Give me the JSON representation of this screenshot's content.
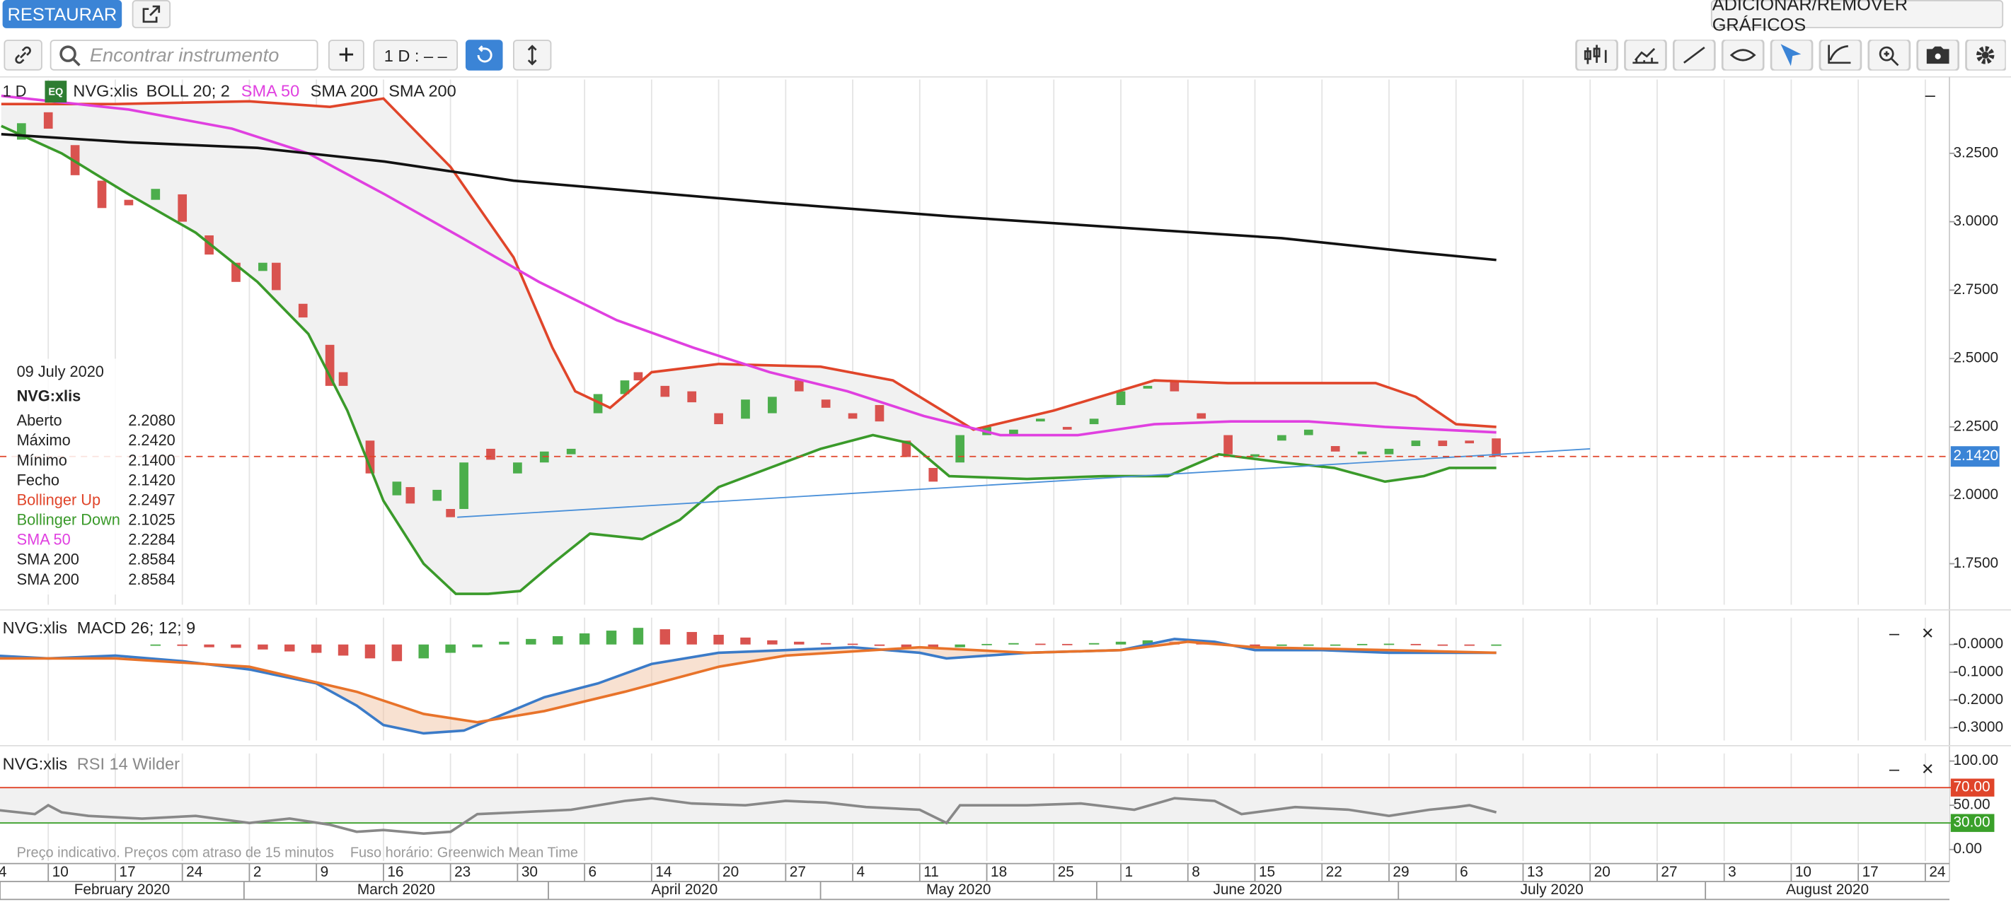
{
  "toolbar": {
    "restore": "RESTAURAR",
    "add_remove": "ADICIONAR/REMOVER GRÁFICOS",
    "search_placeholder": "Encontrar instrumento",
    "interval": "1 D : – –"
  },
  "legend": {
    "interval": "1 D",
    "badge": "EQ",
    "instrument": "NVG:xlis",
    "indicators": [
      "BOLL 20; 2",
      "SMA 50",
      "SMA 200",
      "SMA 200"
    ]
  },
  "info": {
    "date": "09 July 2020",
    "instrument": "NVG:xlis",
    "rows": [
      {
        "label": "Aberto",
        "value": "2.2080",
        "color": "#222222"
      },
      {
        "label": "Máximo",
        "value": "2.2420",
        "color": "#222222"
      },
      {
        "label": "Mínimo",
        "value": "2.1400",
        "color": "#222222"
      },
      {
        "label": "Fecho",
        "value": "2.1420",
        "color": "#222222"
      },
      {
        "label": "Bollinger Up",
        "value": "2.2497",
        "color": "#e0452a"
      },
      {
        "label": "Bollinger Down",
        "value": "2.1025",
        "color": "#3a9a2a"
      },
      {
        "label": "SMA 50",
        "value": "2.2284",
        "color": "#e040e0"
      },
      {
        "label": "SMA 200",
        "value": "2.8584",
        "color": "#222222"
      },
      {
        "label": "SMA 200",
        "value": "2.8584",
        "color": "#222222"
      }
    ]
  },
  "footer": {
    "note": "Preço indicativo. Preços com atraso de 15 minutos",
    "timezone": "Fuso horário: Greenwich Mean Time"
  },
  "chart_data": [
    {
      "type": "candlestick",
      "xlim": [
        1.4,
        146.8
      ],
      "ylim": [
        1.6,
        3.52
      ],
      "yticks": [
        {
          "value": 3.25,
          "label": "3.2500"
        },
        {
          "value": 3.0,
          "label": "3.0000"
        },
        {
          "value": 2.75,
          "label": "2.7500"
        },
        {
          "value": 2.5,
          "label": "2.5000"
        },
        {
          "value": 2.25,
          "label": "2.2500"
        },
        {
          "value": 2.0,
          "label": "2.0000"
        },
        {
          "value": 1.75,
          "label": "1.7500"
        }
      ],
      "up_color": "#4cae4c",
      "down_color": "#d9534f",
      "candles": {
        "x": [
          1,
          3,
          5,
          7,
          9,
          11,
          13,
          15,
          17,
          19,
          21,
          22,
          24,
          26,
          27,
          29,
          31,
          32,
          34,
          35,
          36,
          38,
          40,
          42,
          44,
          46,
          48,
          49,
          51,
          53,
          55,
          57,
          59,
          61,
          63,
          65,
          67,
          69,
          71,
          73,
          75,
          77,
          79,
          81,
          83,
          85,
          87,
          89,
          91,
          93,
          95,
          97,
          99,
          101,
          103,
          105,
          107,
          109,
          111,
          113
        ],
        "open": [
          3.32,
          3.3,
          3.4,
          3.28,
          3.15,
          3.08,
          3.08,
          3.1,
          2.95,
          2.85,
          2.82,
          2.85,
          2.7,
          2.55,
          2.45,
          2.2,
          2.0,
          2.03,
          1.98,
          1.95,
          1.95,
          2.17,
          2.08,
          2.12,
          2.15,
          2.3,
          2.37,
          2.45,
          2.4,
          2.38,
          2.3,
          2.28,
          2.3,
          2.42,
          2.35,
          2.3,
          2.33,
          2.2,
          2.1,
          2.12,
          2.22,
          2.22,
          2.27,
          2.25,
          2.26,
          2.33,
          2.39,
          2.42,
          2.3,
          2.22,
          2.14,
          2.2,
          2.22,
          2.18,
          2.15,
          2.15,
          2.18,
          2.2,
          2.2,
          2.208
        ],
        "close": [
          3.3,
          3.36,
          3.34,
          3.17,
          3.05,
          3.06,
          3.12,
          3.0,
          2.88,
          2.78,
          2.85,
          2.75,
          2.65,
          2.4,
          2.4,
          2.08,
          2.05,
          1.97,
          2.02,
          1.92,
          2.12,
          2.13,
          2.12,
          2.16,
          2.17,
          2.37,
          2.42,
          2.42,
          2.36,
          2.34,
          2.26,
          2.35,
          2.36,
          2.38,
          2.32,
          2.28,
          2.27,
          2.14,
          2.05,
          2.22,
          2.25,
          2.24,
          2.28,
          2.24,
          2.28,
          2.38,
          2.4,
          2.38,
          2.28,
          2.15,
          2.15,
          2.22,
          2.24,
          2.16,
          2.16,
          2.17,
          2.2,
          2.18,
          2.19,
          2.142
        ]
      },
      "series": [
        {
          "color": "#e0452a",
          "fill": "#f1f1f1",
          "x": [
            1.5,
            10,
            20,
            26,
            30,
            35,
            39.7,
            42.6,
            44.3,
            46.9,
            50,
            55,
            62.6,
            68,
            74,
            80,
            87.5,
            93,
            104,
            107,
            110,
            113
          ],
          "values": [
            3.43,
            3.43,
            3.44,
            3.42,
            3.45,
            3.2,
            2.87,
            2.54,
            2.38,
            2.32,
            2.45,
            2.48,
            2.47,
            2.42,
            2.24,
            2.31,
            2.42,
            2.41,
            2.41,
            2.36,
            2.26,
            2.25
          ]
        },
        {
          "color": "#3a9a2a",
          "fill": "#f1f1f1",
          "x": [
            1.5,
            6,
            11,
            16,
            20.6,
            24.4,
            27.3,
            30,
            33,
            35.4,
            37.8,
            40.2,
            42.6,
            45.4,
            49.3,
            52.1,
            55,
            58.8,
            62.6,
            66.5,
            69.3,
            72.2,
            78,
            83.7,
            88.5,
            92.3,
            97.1,
            100.9,
            104.7,
            107.6,
            109.5,
            113
          ],
          "values": [
            3.35,
            3.25,
            3.1,
            2.96,
            2.78,
            2.59,
            2.31,
            1.98,
            1.75,
            1.64,
            1.64,
            1.65,
            1.75,
            1.86,
            1.84,
            1.91,
            2.03,
            2.1,
            2.17,
            2.22,
            2.19,
            2.07,
            2.06,
            2.07,
            2.07,
            2.15,
            2.12,
            2.1,
            2.05,
            2.07,
            2.1,
            2.1
          ]
        },
        {
          "color": "#e040e0",
          "x": [
            1.5,
            11,
            18.7,
            24.4,
            30.1,
            35.9,
            41.6,
            47.4,
            53.1,
            58.8,
            64.6,
            70.3,
            76,
            81.8,
            87.5,
            93.2,
            99,
            104.7,
            113
          ],
          "values": [
            3.46,
            3.41,
            3.34,
            3.25,
            3.1,
            2.94,
            2.78,
            2.64,
            2.54,
            2.45,
            2.38,
            2.29,
            2.22,
            2.22,
            2.26,
            2.27,
            2.27,
            2.25,
            2.23
          ]
        },
        {
          "color": "#111111",
          "x": [
            1.5,
            11,
            20.6,
            30.1,
            39.7,
            49.3,
            58.8,
            72.2,
            87.5,
            97,
            106.6,
            113
          ],
          "values": [
            3.32,
            3.29,
            3.27,
            3.22,
            3.15,
            3.11,
            3.07,
            3.02,
            2.97,
            2.94,
            2.89,
            2.86
          ]
        },
        {
          "color": "#4a90d9",
          "x": [
            35.5,
            120
          ],
          "values": [
            1.92,
            2.17
          ]
        }
      ],
      "price_line": {
        "value": 2.142,
        "label": "2.1420",
        "color": "#e0452a",
        "box_color": "#3b84d6"
      }
    },
    {
      "type": "macd",
      "legend": [
        "NVG:xlis",
        "MACD 26; 12; 9"
      ],
      "xlim": [
        1.4,
        146.8
      ],
      "ylim": [
        -0.346,
        0.097
      ],
      "yticks": [
        {
          "value": 0,
          "label": "-0.0000"
        },
        {
          "value": -0.1,
          "label": "-0.1000"
        },
        {
          "value": -0.2,
          "label": "-0.2000"
        },
        {
          "value": -0.3,
          "label": "-0.3000"
        }
      ],
      "up_color": "#4cae4c",
      "down_color": "#d9534f",
      "histogram": {
        "x": [
          13,
          15,
          17,
          19,
          21,
          23,
          25,
          27,
          29,
          31,
          33,
          35,
          37,
          39,
          41,
          43,
          45,
          47,
          49,
          51,
          53,
          55,
          57,
          59,
          61,
          63,
          65,
          67,
          69,
          71,
          73,
          75,
          77,
          79,
          81,
          83,
          85,
          87,
          89,
          91,
          93,
          95,
          97,
          99,
          101,
          103,
          105,
          107,
          109,
          111,
          113
        ],
        "values": [
          -0.002,
          -0.005,
          -0.01,
          -0.012,
          -0.018,
          -0.025,
          -0.03,
          -0.04,
          -0.05,
          -0.06,
          -0.05,
          -0.03,
          -0.01,
          0.01,
          0.02,
          0.03,
          0.04,
          0.05,
          0.06,
          0.055,
          0.045,
          0.035,
          0.025,
          0.015,
          0.01,
          0.005,
          0.003,
          -0.005,
          -0.01,
          -0.015,
          -0.01,
          0.002,
          0.005,
          0.003,
          0.002,
          0.005,
          0.01,
          0.015,
          0.01,
          0.005,
          -0.005,
          -0.008,
          -0.005,
          -0.003,
          -0.002,
          0.002,
          0.003,
          0.002,
          -0.001,
          -0.002,
          -0.002
        ]
      },
      "series": [
        {
          "color": "#3b7bc8",
          "x": [
            1,
            5,
            10,
            15,
            20,
            25,
            28,
            30,
            33,
            36,
            39,
            42,
            46,
            50,
            55,
            60,
            65,
            70,
            72,
            78,
            85,
            89,
            92,
            95,
            100,
            105,
            110,
            113
          ],
          "values": [
            -0.04,
            -0.05,
            -0.04,
            -0.06,
            -0.09,
            -0.14,
            -0.22,
            -0.29,
            -0.32,
            -0.31,
            -0.25,
            -0.19,
            -0.14,
            -0.07,
            -0.03,
            -0.02,
            -0.01,
            -0.03,
            -0.05,
            -0.03,
            -0.02,
            0.02,
            0.01,
            -0.02,
            -0.02,
            -0.03,
            -0.03,
            -0.03
          ]
        },
        {
          "color": "#e8732a",
          "x": [
            1,
            10,
            20,
            28,
            33,
            37,
            42,
            48,
            55,
            60,
            70,
            78,
            85,
            90,
            95,
            105,
            113
          ],
          "values": [
            -0.05,
            -0.05,
            -0.08,
            -0.17,
            -0.25,
            -0.28,
            -0.24,
            -0.17,
            -0.08,
            -0.04,
            -0.01,
            -0.03,
            -0.02,
            0.01,
            -0.01,
            -0.02,
            -0.03
          ]
        }
      ]
    },
    {
      "type": "line",
      "legend": [
        "NVG:xlis",
        "RSI 14 Wilder"
      ],
      "xlim": [
        1.4,
        146.8
      ],
      "ylim": [
        -13,
        108.7
      ],
      "yticks": [
        {
          "value": 100,
          "label": "100.00"
        },
        {
          "value": 50,
          "label": "50.00"
        },
        {
          "value": 0,
          "label": "0.00"
        }
      ],
      "levels": [
        {
          "value": 70,
          "label": "70.00",
          "color": "#e0452a"
        },
        {
          "value": 30,
          "label": "30.00",
          "color": "#3aa02a"
        }
      ],
      "band_fill": "#f1f1f1",
      "series": [
        {
          "color": "#888888",
          "x": [
            1,
            4,
            5,
            6,
            8,
            12,
            16,
            20,
            23,
            26,
            28,
            30,
            33,
            35,
            37,
            40,
            44,
            48,
            50,
            53,
            57,
            60,
            63,
            66,
            70,
            72,
            73,
            78,
            82,
            86,
            89,
            92,
            94,
            98,
            102,
            105,
            108,
            110,
            111,
            113
          ],
          "values": [
            45,
            40,
            50,
            42,
            38,
            35,
            38,
            30,
            35,
            28,
            20,
            22,
            18,
            20,
            40,
            42,
            45,
            55,
            58,
            52,
            50,
            55,
            53,
            48,
            45,
            30,
            50,
            50,
            52,
            45,
            58,
            55,
            40,
            48,
            45,
            38,
            45,
            48,
            50,
            42
          ]
        }
      ],
      "xticks": [
        {
          "value": 1,
          "label": "4"
        },
        {
          "value": 5,
          "label": "10"
        },
        {
          "value": 10,
          "label": "17"
        },
        {
          "value": 15,
          "label": "24"
        },
        {
          "value": 20,
          "label": "2"
        },
        {
          "value": 25,
          "label": "9"
        },
        {
          "value": 30,
          "label": "16"
        },
        {
          "value": 35,
          "label": "23"
        },
        {
          "value": 40,
          "label": "30"
        },
        {
          "value": 45,
          "label": "6"
        },
        {
          "value": 50,
          "label": "14"
        },
        {
          "value": 55,
          "label": "20"
        },
        {
          "value": 60,
          "label": "27"
        },
        {
          "value": 65,
          "label": "4"
        },
        {
          "value": 70,
          "label": "11"
        },
        {
          "value": 75,
          "label": "18"
        },
        {
          "value": 80,
          "label": "25"
        },
        {
          "value": 85,
          "label": "1"
        },
        {
          "value": 90,
          "label": "8"
        },
        {
          "value": 95,
          "label": "15"
        },
        {
          "value": 100,
          "label": "22"
        },
        {
          "value": 105,
          "label": "29"
        },
        {
          "value": 110,
          "label": "6"
        },
        {
          "value": 115,
          "label": "13"
        },
        {
          "value": 120,
          "label": "20"
        },
        {
          "value": 125,
          "label": "27"
        },
        {
          "value": 130,
          "label": "3"
        },
        {
          "value": 135,
          "label": "10"
        },
        {
          "value": 140,
          "label": "17"
        },
        {
          "value": 145,
          "label": "24"
        }
      ],
      "x_groups": [
        {
          "label": "February 2020",
          "start": 1.4,
          "end": 19.6
        },
        {
          "label": "March 2020",
          "start": 19.6,
          "end": 42.3
        },
        {
          "label": "April 2020",
          "start": 42.3,
          "end": 62.6
        },
        {
          "label": "May 2020",
          "start": 62.6,
          "end": 83.2
        },
        {
          "label": "June 2020",
          "start": 83.2,
          "end": 105.7
        },
        {
          "label": "July 2020",
          "start": 105.7,
          "end": 128.6
        },
        {
          "label": "August 2020",
          "start": 128.6,
          "end": 146.8
        }
      ]
    }
  ]
}
